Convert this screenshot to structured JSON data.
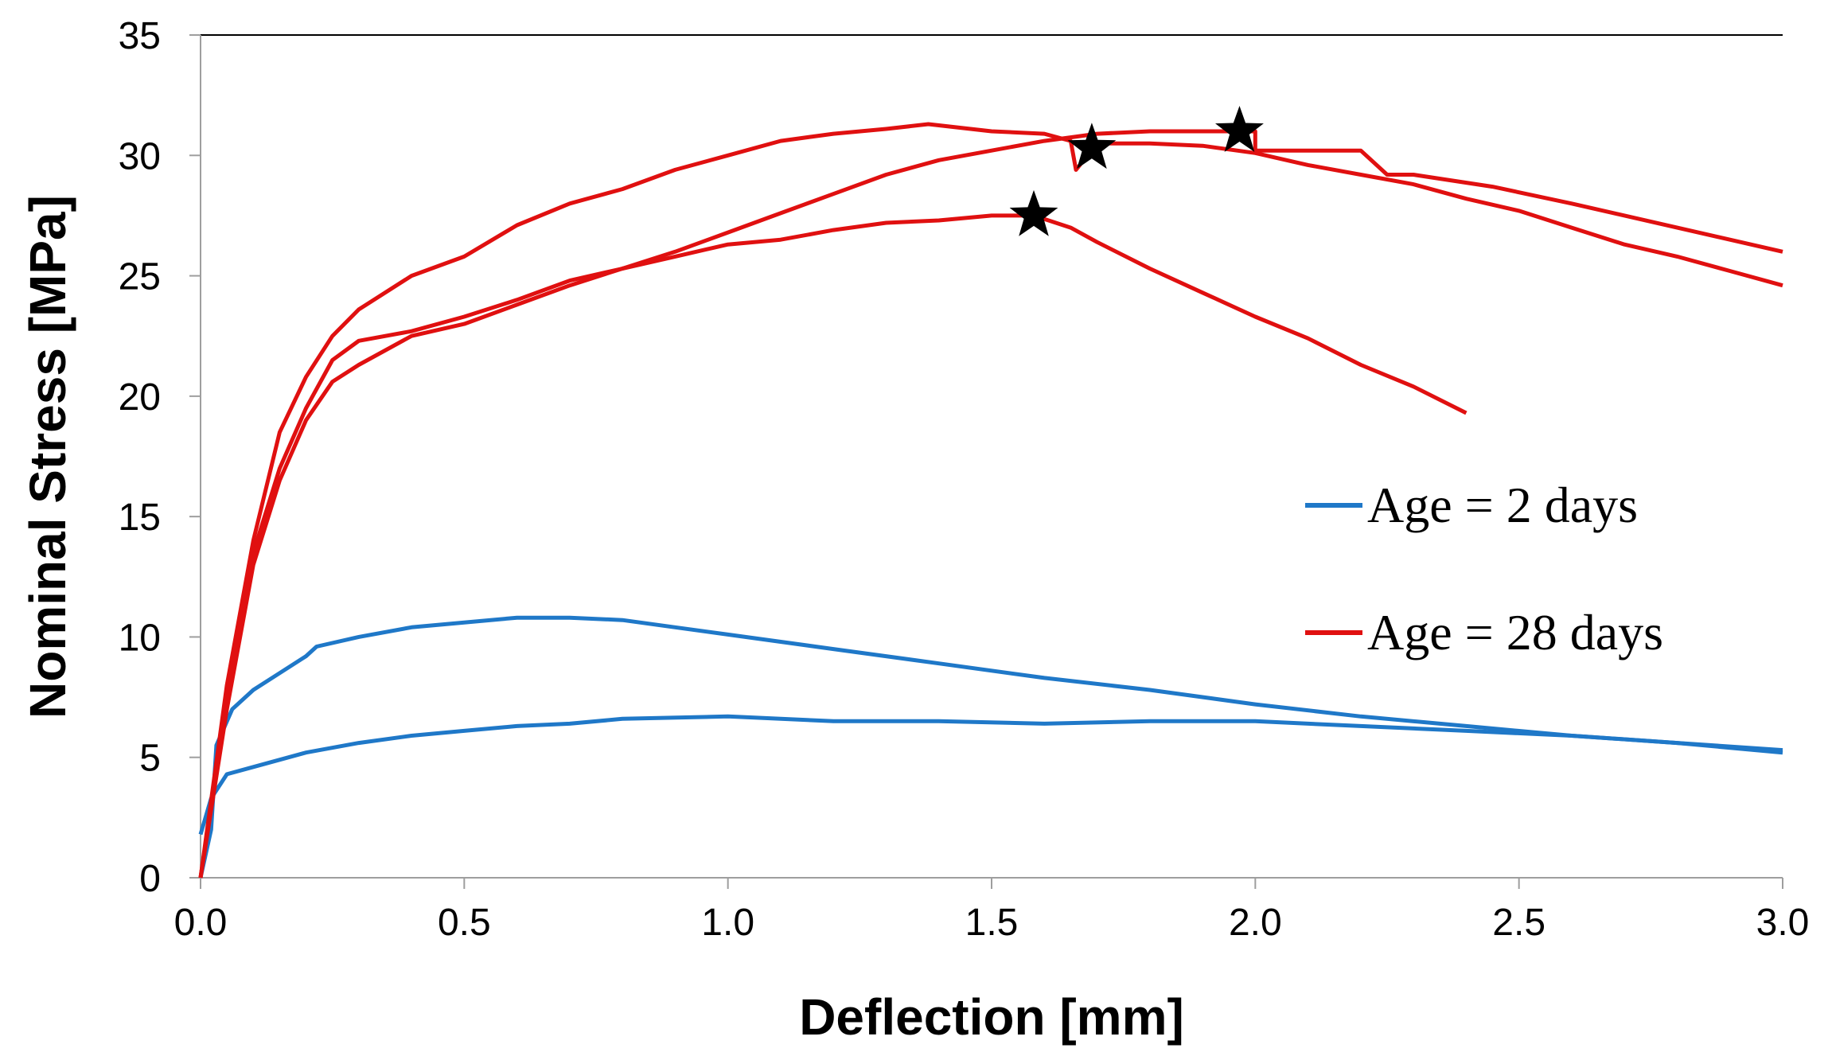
{
  "chart_data": {
    "type": "line",
    "title": "",
    "xlabel": "Deflection [mm]",
    "ylabel": "Nominal Stress [MPa]",
    "xlim": [
      0,
      3.0
    ],
    "ylim": [
      0,
      35
    ],
    "x_ticks": [
      "0.0",
      "0.5",
      "1.0",
      "1.5",
      "2.0",
      "2.5",
      "3.0"
    ],
    "y_ticks": [
      "0",
      "5",
      "10",
      "15",
      "20",
      "25",
      "30",
      "35"
    ],
    "grid": false,
    "legend_position": "right",
    "legend": [
      {
        "label": "Age = 2 days",
        "color": "#1f78c8"
      },
      {
        "label": "Age = 28 days",
        "color": "#e01010"
      }
    ],
    "series": [
      {
        "name": "Age = 2 days",
        "color": "#1f78c8",
        "points": [
          [
            0,
            0
          ],
          [
            0.02,
            2
          ],
          [
            0.03,
            5.5
          ],
          [
            0.06,
            7
          ],
          [
            0.1,
            7.8
          ],
          [
            0.15,
            8.5
          ],
          [
            0.2,
            9.2
          ],
          [
            0.22,
            9.6
          ],
          [
            0.3,
            10
          ],
          [
            0.4,
            10.4
          ],
          [
            0.5,
            10.6
          ],
          [
            0.6,
            10.8
          ],
          [
            0.7,
            10.8
          ],
          [
            0.8,
            10.7
          ],
          [
            0.9,
            10.4
          ],
          [
            1.0,
            10.1
          ],
          [
            1.2,
            9.5
          ],
          [
            1.4,
            8.9
          ],
          [
            1.6,
            8.3
          ],
          [
            1.8,
            7.8
          ],
          [
            2.0,
            7.2
          ],
          [
            2.2,
            6.7
          ],
          [
            2.4,
            6.3
          ],
          [
            2.6,
            5.9
          ],
          [
            2.8,
            5.6
          ],
          [
            3.0,
            5.2
          ]
        ]
      },
      {
        "name": "Age = 2 days",
        "color": "#1f78c8",
        "points": [
          [
            0,
            1.8
          ],
          [
            0.02,
            3.3
          ],
          [
            0.05,
            4.3
          ],
          [
            0.1,
            4.6
          ],
          [
            0.2,
            5.2
          ],
          [
            0.3,
            5.6
          ],
          [
            0.4,
            5.9
          ],
          [
            0.5,
            6.1
          ],
          [
            0.6,
            6.3
          ],
          [
            0.7,
            6.4
          ],
          [
            0.8,
            6.6
          ],
          [
            1.0,
            6.7
          ],
          [
            1.2,
            6.5
          ],
          [
            1.4,
            6.5
          ],
          [
            1.6,
            6.4
          ],
          [
            1.8,
            6.5
          ],
          [
            2.0,
            6.5
          ],
          [
            2.2,
            6.3
          ],
          [
            2.4,
            6.1
          ],
          [
            2.6,
            5.9
          ],
          [
            2.8,
            5.6
          ],
          [
            3.0,
            5.3
          ]
        ]
      },
      {
        "name": "Age = 28 days",
        "color": "#e01010",
        "points": [
          [
            0,
            0
          ],
          [
            0.05,
            7
          ],
          [
            0.1,
            13
          ],
          [
            0.15,
            16.5
          ],
          [
            0.2,
            19
          ],
          [
            0.25,
            20.6
          ],
          [
            0.3,
            21.3
          ],
          [
            0.4,
            22.5
          ],
          [
            0.5,
            23
          ],
          [
            0.6,
            23.8
          ],
          [
            0.7,
            24.6
          ],
          [
            0.8,
            25.3
          ],
          [
            0.9,
            25.8
          ],
          [
            1.0,
            26.3
          ],
          [
            1.1,
            26.5
          ],
          [
            1.2,
            26.9
          ],
          [
            1.3,
            27.2
          ],
          [
            1.4,
            27.3
          ],
          [
            1.5,
            27.5
          ],
          [
            1.58,
            27.5
          ],
          [
            1.65,
            27.0
          ],
          [
            1.7,
            26.4
          ],
          [
            1.8,
            25.3
          ],
          [
            1.9,
            24.3
          ],
          [
            2.0,
            23.3
          ],
          [
            2.1,
            22.4
          ],
          [
            2.2,
            21.3
          ],
          [
            2.3,
            20.4
          ],
          [
            2.4,
            19.3
          ]
        ]
      },
      {
        "name": "Age = 28 days",
        "color": "#e01010",
        "points": [
          [
            0,
            0
          ],
          [
            0.05,
            7.5
          ],
          [
            0.1,
            13.5
          ],
          [
            0.15,
            17
          ],
          [
            0.2,
            19.5
          ],
          [
            0.25,
            21.5
          ],
          [
            0.3,
            22.3
          ],
          [
            0.4,
            22.7
          ],
          [
            0.5,
            23.3
          ],
          [
            0.6,
            24
          ],
          [
            0.7,
            24.8
          ],
          [
            0.8,
            25.3
          ],
          [
            0.9,
            26
          ],
          [
            1.0,
            26.8
          ],
          [
            1.1,
            27.6
          ],
          [
            1.2,
            28.4
          ],
          [
            1.3,
            29.2
          ],
          [
            1.4,
            29.8
          ],
          [
            1.5,
            30.2
          ],
          [
            1.6,
            30.6
          ],
          [
            1.7,
            30.9
          ],
          [
            1.8,
            31
          ],
          [
            1.9,
            31
          ],
          [
            2.0,
            31
          ],
          [
            2.0,
            30.2
          ],
          [
            2.1,
            30.2
          ],
          [
            2.2,
            30.2
          ],
          [
            2.25,
            29.2
          ],
          [
            2.3,
            29.2
          ],
          [
            2.45,
            28.7
          ],
          [
            2.6,
            28
          ],
          [
            2.8,
            27
          ],
          [
            3.0,
            26
          ]
        ]
      },
      {
        "name": "Age = 28 days",
        "color": "#e01010",
        "points": [
          [
            0,
            0
          ],
          [
            0.05,
            8
          ],
          [
            0.1,
            14
          ],
          [
            0.15,
            18.5
          ],
          [
            0.2,
            20.8
          ],
          [
            0.25,
            22.5
          ],
          [
            0.3,
            23.6
          ],
          [
            0.4,
            25
          ],
          [
            0.5,
            25.8
          ],
          [
            0.6,
            27.1
          ],
          [
            0.7,
            28
          ],
          [
            0.8,
            28.6
          ],
          [
            0.9,
            29.4
          ],
          [
            1.0,
            30
          ],
          [
            1.1,
            30.6
          ],
          [
            1.2,
            30.9
          ],
          [
            1.3,
            31.1
          ],
          [
            1.38,
            31.3
          ],
          [
            1.5,
            31
          ],
          [
            1.6,
            30.9
          ],
          [
            1.65,
            30.6
          ],
          [
            1.66,
            29.4
          ],
          [
            1.7,
            30.5
          ],
          [
            1.8,
            30.5
          ],
          [
            1.9,
            30.4
          ],
          [
            2.0,
            30.1
          ],
          [
            2.1,
            29.6
          ],
          [
            2.2,
            29.2
          ],
          [
            2.3,
            28.8
          ],
          [
            2.4,
            28.2
          ],
          [
            2.5,
            27.7
          ],
          [
            2.6,
            27
          ],
          [
            2.7,
            26.3
          ],
          [
            2.8,
            25.8
          ],
          [
            2.9,
            25.2
          ],
          [
            3.0,
            24.6
          ]
        ]
      }
    ],
    "markers": [
      {
        "symbol": "star",
        "x": 1.58,
        "y": 27.5
      },
      {
        "symbol": "star",
        "x": 1.69,
        "y": 30.3
      },
      {
        "symbol": "star",
        "x": 1.97,
        "y": 31.0
      }
    ]
  }
}
